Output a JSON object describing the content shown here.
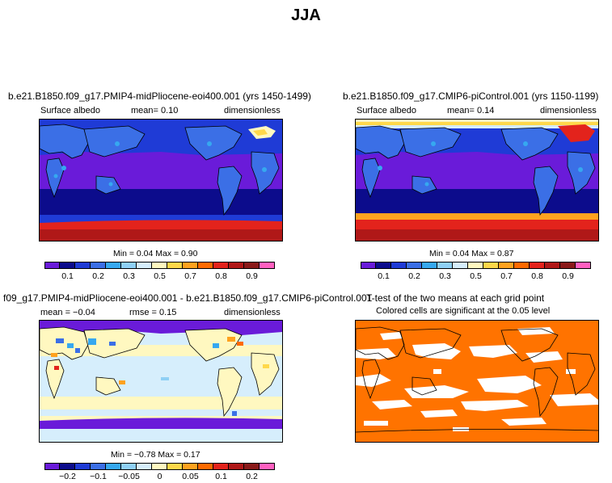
{
  "title": "JJA",
  "panels": [
    {
      "title": "b.e21.B1850.f09_g17.PMIP4-midPliocene-eoi400.001 (yrs 1450-1499)",
      "variable": "Surface albedo",
      "mean_text": "mean=   0.10",
      "units": "dimensionless",
      "minmax": "Min =   0.04  Max =   0.90",
      "colorbar_ticks": [
        "0.1",
        "0.2",
        "0.3",
        "0.5",
        "0.7",
        "0.8",
        "0.9"
      ]
    },
    {
      "title": "b.e21.B1850.f09_g17.CMIP6-piControl.001 (yrs 1150-1199)",
      "variable": "Surface albedo",
      "mean_text": "mean=   0.14",
      "units": "dimensionless",
      "minmax": "Min =   0.04  Max =   0.87",
      "colorbar_ticks": [
        "0.1",
        "0.2",
        "0.3",
        "0.5",
        "0.7",
        "0.8",
        "0.9"
      ]
    },
    {
      "title": "f09_g17.PMIP4-midPliocene-eoi400.001 - b.e21.B1850.f09_g17.CMIP6-piControl.001",
      "mean_text": "mean =   −0.04",
      "rmse_text": "rmse =   0.15",
      "units": "dimensionless",
      "minmax": "Min =   −0.78  Max =   0.17",
      "colorbar_ticks": [
        "−0.2",
        "−0.1",
        "−0.05",
        "0",
        "0.05",
        "0.1",
        "0.2"
      ]
    },
    {
      "title": "T-test of the two means at each grid point",
      "subtitle": "Colored cells are significant at the 0.05 level"
    }
  ],
  "chart_data": [
    {
      "type": "heatmap",
      "title": "b.e21.B1850.f09_g17.PMIP4-midPliocene-eoi400.001 (yrs 1450-1499)",
      "variable": "Surface albedo",
      "mean": 0.1,
      "min": 0.04,
      "max": 0.9,
      "colorbar_levels": [
        0.1,
        0.2,
        0.3,
        0.5,
        0.7,
        0.8,
        0.9
      ],
      "dominant_values": {
        "tropical_ocean": 0.05,
        "extratropical_ocean": 0.06,
        "land": 0.15,
        "southern_sea_ice": 0.75
      }
    },
    {
      "type": "heatmap",
      "title": "b.e21.B1850.f09_g17.CMIP6-piControl.001 (yrs 1150-1199)",
      "variable": "Surface albedo",
      "mean": 0.14,
      "min": 0.04,
      "max": 0.87,
      "colorbar_levels": [
        0.1,
        0.2,
        0.3,
        0.5,
        0.7,
        0.8,
        0.9
      ],
      "dominant_values": {
        "tropical_ocean": 0.05,
        "extratropical_ocean": 0.06,
        "land": 0.15,
        "arctic": 0.5,
        "greenland": 0.8,
        "southern_sea_ice": 0.8
      }
    },
    {
      "type": "heatmap",
      "title": "f09_g17.PMIP4-midPliocene-eoi400.001 - b.e21.B1850.f09_g17.CMIP6-piControl.001",
      "mean": -0.04,
      "rmse": 0.15,
      "min": -0.78,
      "max": 0.17,
      "colorbar_levels": [
        -0.2,
        -0.1,
        -0.05,
        0,
        0.05,
        0.1,
        0.2
      ]
    },
    {
      "type": "heatmap",
      "title": "T-test of the two means at each grid point",
      "subtitle": "Colored cells are significant at the 0.05 level",
      "significance_level": 0.05
    }
  ],
  "colors": {
    "albedo_scale": [
      "#6a1bd9",
      "#0c0c8c",
      "#1f3bd6",
      "#3b6fe6",
      "#36a8f0",
      "#8fd0f5",
      "#d6eefc",
      "#fff8c0",
      "#ffd84a",
      "#ffa21f",
      "#ff6a00",
      "#e3231c",
      "#b01818",
      "#8a1a1a",
      "#ff60c0"
    ],
    "diff_scale": [
      "#6a1bd9",
      "#0c0c8c",
      "#1f3bd6",
      "#3b6fe6",
      "#36a8f0",
      "#8fd0f5",
      "#d6eefc",
      "#fff8c0",
      "#ffd84a",
      "#ffa21f",
      "#ff6a00",
      "#e3231c",
      "#b01818",
      "#8a1a1a",
      "#ff60c0"
    ],
    "significant": "#ff7300"
  }
}
